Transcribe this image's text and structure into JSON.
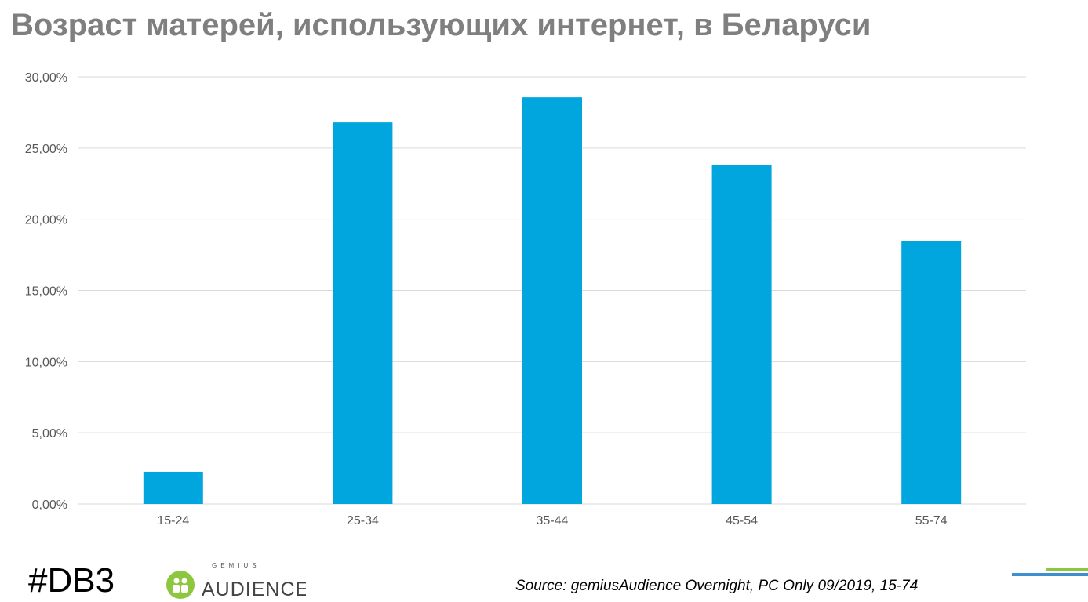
{
  "title": "Возраст матерей, использующих интернет, в Беларуси",
  "footer": {
    "hashtag": "#DB3",
    "logo_top": "GEMIUS",
    "logo_main": "AUDIENCE",
    "source": "Source: gemiusAudience Overnight,  PC Only 09/2019, 15-74"
  },
  "colors": {
    "bar": "#00a6dd",
    "grid": "#d9d9d9",
    "text": "#595959",
    "green": "#8dc63f",
    "blue": "#3f8fce"
  },
  "chart_data": {
    "type": "bar",
    "title": "Возраст матерей, использующих интернет, в Беларуси",
    "categories": [
      "15-24",
      "25-34",
      "35-44",
      "45-54",
      "55-74"
    ],
    "values": [
      2.26,
      26.8,
      28.56,
      23.83,
      18.44
    ],
    "ylim": [
      0,
      30
    ],
    "yticks": [
      0,
      5,
      10,
      15,
      20,
      25,
      30
    ],
    "ytick_labels": [
      "0,00%",
      "5,00%",
      "10,00%",
      "15,00%",
      "20,00%",
      "25,00%",
      "30,00%"
    ],
    "xlabel": "",
    "ylabel": "",
    "grid": true,
    "legend": "none"
  }
}
